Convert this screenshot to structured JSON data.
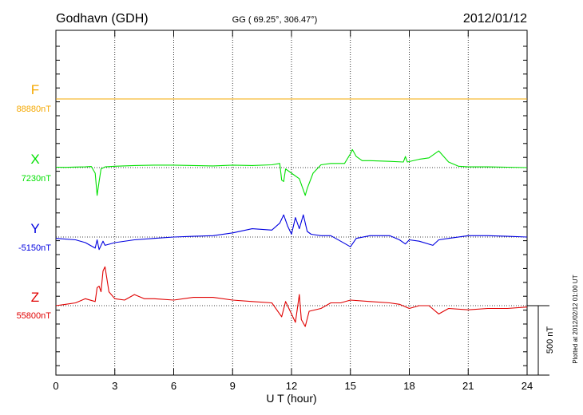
{
  "header": {
    "station": "Godhavn (GDH)",
    "coords": "GG ( 69.25°, 306.47°)",
    "date": "2012/01/12"
  },
  "footer": {
    "plotted": "Plotted at 2012/02/12 01:00 UT"
  },
  "chart_data": {
    "type": "line",
    "xlabel": "U T (hour)",
    "xlim": [
      0,
      24
    ],
    "xticks": [
      0,
      3,
      6,
      9,
      12,
      15,
      18,
      21,
      24
    ],
    "grid": true,
    "scale_bar": {
      "label": "500 nT",
      "value_nT": 500
    },
    "series": [
      {
        "name": "F",
        "baseline_label": "88880nT",
        "color": "#f5a800",
        "baseline_nT": 88880,
        "points": [
          [
            0,
            0
          ],
          [
            24,
            0
          ]
        ]
      },
      {
        "name": "X",
        "baseline_label": "7230nT",
        "color": "#00e000",
        "baseline_nT": 7230,
        "points": [
          [
            0,
            3
          ],
          [
            0.5,
            2
          ],
          [
            1,
            4
          ],
          [
            1.5,
            5
          ],
          [
            1.8,
            8
          ],
          [
            2.0,
            -40
          ],
          [
            2.1,
            -200
          ],
          [
            2.2,
            -100
          ],
          [
            2.3,
            -10
          ],
          [
            2.5,
            5
          ],
          [
            3,
            10
          ],
          [
            4,
            15
          ],
          [
            5,
            18
          ],
          [
            6,
            18
          ],
          [
            7,
            15
          ],
          [
            8,
            12
          ],
          [
            9,
            18
          ],
          [
            10,
            15
          ],
          [
            11,
            20
          ],
          [
            11.4,
            30
          ],
          [
            11.5,
            -90
          ],
          [
            11.6,
            -100
          ],
          [
            11.7,
            -10
          ],
          [
            12,
            -40
          ],
          [
            12.4,
            -80
          ],
          [
            12.7,
            -200
          ],
          [
            12.8,
            -150
          ],
          [
            13.1,
            -40
          ],
          [
            13.5,
            20
          ],
          [
            14,
            30
          ],
          [
            14.7,
            30
          ],
          [
            15.0,
            100
          ],
          [
            15.1,
            130
          ],
          [
            15.3,
            80
          ],
          [
            15.6,
            50
          ],
          [
            16,
            50
          ],
          [
            17,
            45
          ],
          [
            17.7,
            40
          ],
          [
            17.8,
            80
          ],
          [
            17.9,
            40
          ],
          [
            18.5,
            60
          ],
          [
            19,
            70
          ],
          [
            19.5,
            120
          ],
          [
            20,
            40
          ],
          [
            20.5,
            10
          ],
          [
            21,
            5
          ],
          [
            22,
            5
          ],
          [
            23,
            3
          ],
          [
            24,
            0
          ]
        ]
      },
      {
        "name": "Y",
        "baseline_label": "-5150nT",
        "color": "#0000e0",
        "baseline_nT": -5150,
        "points": [
          [
            0,
            -10
          ],
          [
            1,
            -20
          ],
          [
            1.5,
            -40
          ],
          [
            2.0,
            -80
          ],
          [
            2.1,
            -20
          ],
          [
            2.2,
            -90
          ],
          [
            2.4,
            -30
          ],
          [
            2.5,
            -60
          ],
          [
            3,
            -40
          ],
          [
            4,
            -20
          ],
          [
            5,
            -10
          ],
          [
            6,
            0
          ],
          [
            7,
            5
          ],
          [
            8,
            10
          ],
          [
            9,
            30
          ],
          [
            10,
            60
          ],
          [
            11,
            50
          ],
          [
            11.4,
            100
          ],
          [
            11.6,
            160
          ],
          [
            11.8,
            80
          ],
          [
            12,
            20
          ],
          [
            12.2,
            140
          ],
          [
            12.4,
            60
          ],
          [
            12.6,
            160
          ],
          [
            12.8,
            40
          ],
          [
            13,
            20
          ],
          [
            13.5,
            10
          ],
          [
            14,
            10
          ],
          [
            14.5,
            -30
          ],
          [
            15.0,
            -70
          ],
          [
            15.3,
            -10
          ],
          [
            16,
            10
          ],
          [
            17,
            10
          ],
          [
            17.5,
            -20
          ],
          [
            17.8,
            -50
          ],
          [
            18,
            -20
          ],
          [
            18.5,
            -30
          ],
          [
            19.2,
            -60
          ],
          [
            19.5,
            -20
          ],
          [
            20,
            -10
          ],
          [
            21,
            10
          ],
          [
            22,
            10
          ],
          [
            23,
            5
          ],
          [
            24,
            0
          ]
        ]
      },
      {
        "name": "Z",
        "baseline_label": "55800nT",
        "color": "#e00000",
        "baseline_nT": 55800,
        "points": [
          [
            0,
            0
          ],
          [
            0.5,
            10
          ],
          [
            1,
            20
          ],
          [
            1.5,
            50
          ],
          [
            2.0,
            30
          ],
          [
            2.1,
            130
          ],
          [
            2.2,
            140
          ],
          [
            2.3,
            100
          ],
          [
            2.4,
            250
          ],
          [
            2.5,
            280
          ],
          [
            2.7,
            100
          ],
          [
            3,
            50
          ],
          [
            3.5,
            40
          ],
          [
            4,
            80
          ],
          [
            4.5,
            50
          ],
          [
            5,
            50
          ],
          [
            6,
            40
          ],
          [
            7,
            60
          ],
          [
            8,
            60
          ],
          [
            9,
            40
          ],
          [
            10,
            30
          ],
          [
            11,
            20
          ],
          [
            11.5,
            -80
          ],
          [
            11.7,
            30
          ],
          [
            12,
            -60
          ],
          [
            12.2,
            -120
          ],
          [
            12.4,
            80
          ],
          [
            12.5,
            -100
          ],
          [
            12.7,
            -150
          ],
          [
            12.9,
            -40
          ],
          [
            13.5,
            -20
          ],
          [
            14,
            20
          ],
          [
            14.5,
            20
          ],
          [
            15.0,
            40
          ],
          [
            16,
            30
          ],
          [
            17,
            20
          ],
          [
            17.5,
            10
          ],
          [
            18,
            -20
          ],
          [
            18.5,
            0
          ],
          [
            19,
            0
          ],
          [
            19.5,
            -60
          ],
          [
            20,
            -20
          ],
          [
            21,
            -30
          ],
          [
            22,
            -20
          ],
          [
            23,
            -20
          ],
          [
            24,
            -10
          ]
        ]
      }
    ]
  }
}
